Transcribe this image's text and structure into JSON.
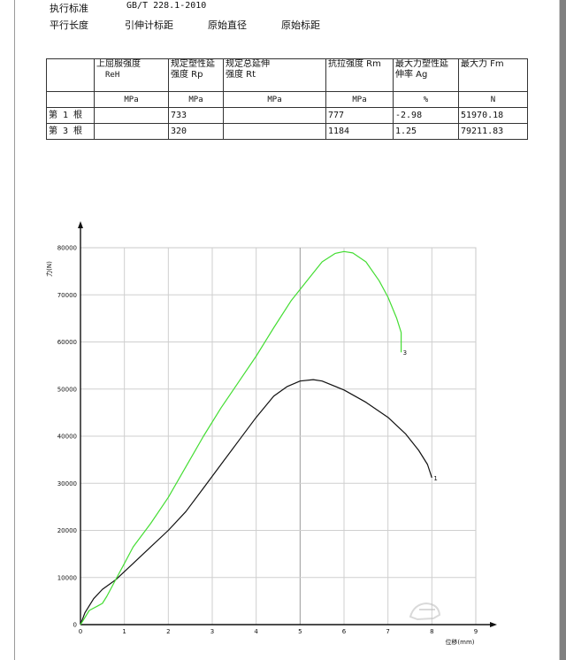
{
  "header": {
    "standard_label": "执行标准",
    "standard_value": "GB/T 228.1-2010",
    "parallel_length": "平行长度",
    "extensometer_gauge": "引伸计标距",
    "original_diameter": "原始直径",
    "original_gauge": "原始标距"
  },
  "table": {
    "headers": [
      {
        "line1": "",
        "line2": ""
      },
      {
        "line1": "上屈服强度",
        "line2": "ReH"
      },
      {
        "line1": "规定塑性延",
        "line2": "强度 Rp"
      },
      {
        "line1": "规定总延伸",
        "line2": "强度 Rt"
      },
      {
        "line1": "抗拉强度 Rm",
        "line2": ""
      },
      {
        "line1": "最大力塑性延",
        "line2": "伸率 Ag"
      },
      {
        "line1": "最大力 Fm",
        "line2": ""
      }
    ],
    "units": [
      "",
      "MPa",
      "MPa",
      "MPa",
      "MPa",
      "%",
      "N"
    ],
    "rows": [
      [
        "第 1 根",
        "",
        "733",
        "",
        "777",
        "-2.98",
        "51970.18"
      ],
      [
        "第 3 根",
        "",
        "320",
        "",
        "1184",
        "1.25",
        "79211.83"
      ]
    ]
  },
  "chart_data": {
    "type": "line",
    "ylabel": "力(N)",
    "xlabel": "位移(mm)",
    "xlim": [
      0,
      9
    ],
    "ylim": [
      0,
      80000
    ],
    "x_ticks": [
      "0",
      "1",
      "2",
      "3",
      "4",
      "5",
      "6",
      "7",
      "8",
      "9"
    ],
    "y_ticks": [
      "0",
      "10000",
      "20000",
      "30000",
      "40000",
      "50000",
      "60000",
      "70000",
      "80000"
    ],
    "grid": true,
    "series": [
      {
        "name": "1",
        "color": "#111111",
        "x": [
          0,
          0.1,
          0.3,
          0.5,
          0.8,
          1.2,
          1.6,
          2.0,
          2.4,
          2.8,
          3.2,
          3.6,
          4.0,
          4.4,
          4.7,
          5.0,
          5.3,
          5.5,
          6.0,
          6.5,
          7.0,
          7.4,
          7.7,
          7.9,
          8.0
        ],
        "y": [
          0,
          2500,
          5500,
          7500,
          9500,
          13000,
          16500,
          20000,
          24000,
          29000,
          34000,
          39000,
          44000,
          48500,
          50500,
          51700,
          52000,
          51700,
          49800,
          47200,
          44000,
          40500,
          37000,
          34000,
          31200
        ]
      },
      {
        "name": "3",
        "color": "#44dd33",
        "x": [
          0,
          0.1,
          0.2,
          0.4,
          0.5,
          0.6,
          0.8,
          1.0,
          1.2,
          1.6,
          2.0,
          2.4,
          2.8,
          3.2,
          3.6,
          4.0,
          4.4,
          4.8,
          5.2,
          5.5,
          5.8,
          6.0,
          6.2,
          6.5,
          6.8,
          7.0,
          7.2,
          7.3,
          7.3
        ],
        "y": [
          0,
          1500,
          3000,
          4000,
          4500,
          6000,
          9500,
          13000,
          16500,
          21500,
          27000,
          33500,
          40000,
          46000,
          51500,
          57000,
          63000,
          68800,
          73500,
          77000,
          78800,
          79200,
          78900,
          77000,
          73000,
          69500,
          65000,
          62000,
          57800
        ]
      }
    ]
  }
}
